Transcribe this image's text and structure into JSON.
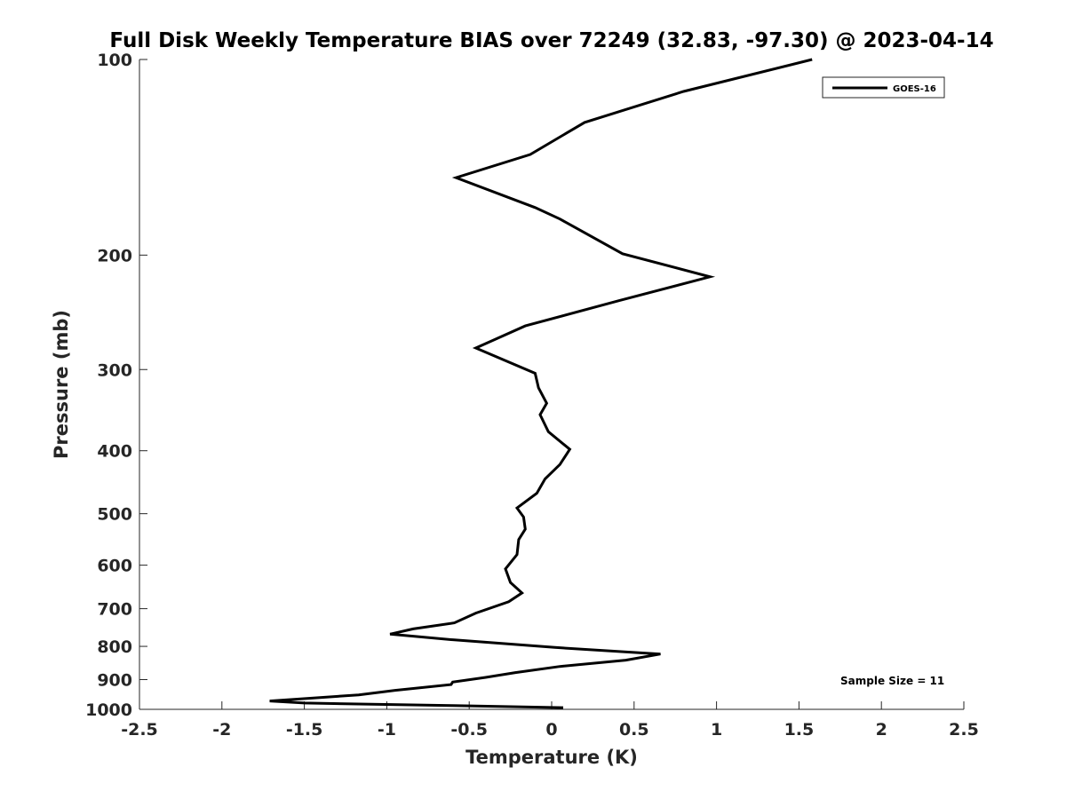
{
  "chart_data": {
    "type": "line",
    "title": "Full Disk Weekly Temperature BIAS over 72249 (32.83, -97.30) @ 2023-04-14",
    "xlabel": "Temperature (K)",
    "ylabel": "Pressure (mb)",
    "xlim": [
      -2.5,
      2.5
    ],
    "ylim": [
      100,
      1000
    ],
    "y_scale": "log",
    "y_reversed": true,
    "x_ticks": [
      -2.5,
      -2,
      -1.5,
      -1,
      -0.5,
      0,
      0.5,
      1,
      1.5,
      2,
      2.5
    ],
    "x_tick_labels": [
      "-2.5",
      "-2",
      "-1.5",
      "-1",
      "-0.5",
      "0",
      "0.5",
      "1",
      "1.5",
      "2",
      "2.5"
    ],
    "y_ticks": [
      100,
      200,
      300,
      400,
      500,
      600,
      700,
      800,
      900,
      1000
    ],
    "y_tick_labels": [
      "100",
      "200",
      "300",
      "400",
      "500",
      "600",
      "700",
      "800",
      "900",
      "1000"
    ],
    "grid": false,
    "legend_position": "top-right",
    "series": [
      {
        "name": "GOES-16",
        "color": "#000000",
        "x": [
          1.58,
          0.8,
          0.2,
          -0.13,
          -0.58,
          -0.1,
          0.05,
          0.43,
          0.96,
          0.41,
          -0.16,
          -0.46,
          -0.1,
          -0.08,
          -0.03,
          -0.07,
          -0.02,
          0.11,
          0.05,
          -0.04,
          -0.09,
          -0.21,
          -0.17,
          -0.16,
          -0.2,
          -0.21,
          -0.28,
          -0.25,
          -0.18,
          -0.26,
          -0.46,
          -0.59,
          -0.84,
          -0.98,
          -0.59,
          0.02,
          0.66,
          0.45,
          0.05,
          -0.22,
          -0.4,
          -0.6,
          -0.61,
          -0.95,
          -1.17,
          -1.71,
          -1.5,
          -0.6,
          0.07
        ],
        "y": [
          100,
          112,
          125,
          140,
          152,
          169,
          176,
          199,
          216,
          235,
          257,
          278,
          304,
          320,
          338,
          352,
          374,
          398,
          420,
          442,
          465,
          490,
          506,
          528,
          548,
          578,
          608,
          638,
          662,
          683,
          711,
          736,
          752,
          766,
          782,
          803,
          822,
          840,
          859,
          878,
          893,
          908,
          916,
          935,
          950,
          971,
          978,
          987,
          994
        ]
      }
    ],
    "annotation": "Sample Size = 11"
  }
}
